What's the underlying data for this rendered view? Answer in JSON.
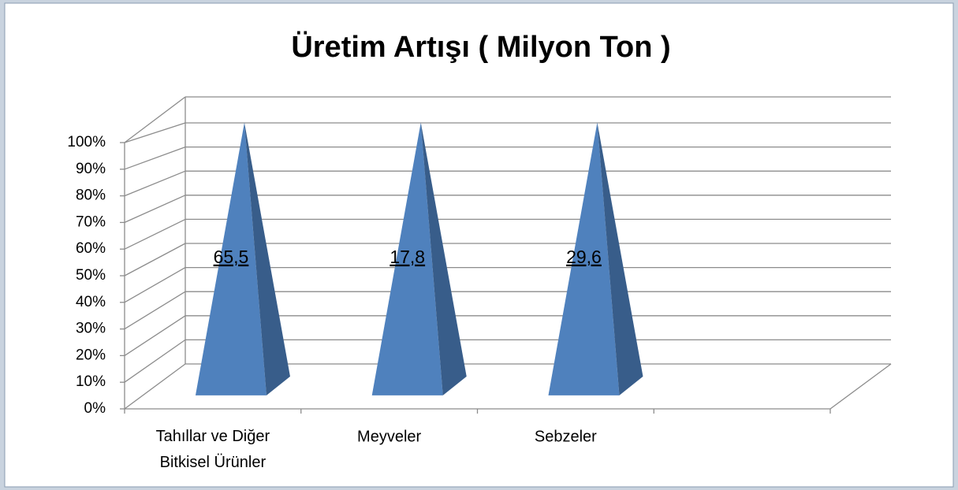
{
  "chart_data": {
    "type": "pyramid",
    "stacking": "percent",
    "title": "Üretim Artışı ( Milyon Ton )",
    "categories": [
      "Tahıllar ve Diğer Bitkisel Ürünler",
      "Meyveler",
      "Sebzeler",
      null
    ],
    "values": [
      65.5,
      17.8,
      29.6,
      null
    ],
    "value_labels": [
      "65,5",
      "17,8",
      "29,6",
      null
    ],
    "color": "#4f81bd",
    "ylim": [
      0,
      100
    ],
    "yticks": [
      {
        "value": 0,
        "label": "0%"
      },
      {
        "value": 10,
        "label": "10%"
      },
      {
        "value": 20,
        "label": "20%"
      },
      {
        "value": 30,
        "label": "30%"
      },
      {
        "value": 40,
        "label": "40%"
      },
      {
        "value": 50,
        "label": "50%"
      },
      {
        "value": 60,
        "label": "60%"
      },
      {
        "value": 70,
        "label": "70%"
      },
      {
        "value": 80,
        "label": "80%"
      },
      {
        "value": 90,
        "label": "90%"
      },
      {
        "value": 100,
        "label": "100%"
      }
    ],
    "grid": true
  }
}
